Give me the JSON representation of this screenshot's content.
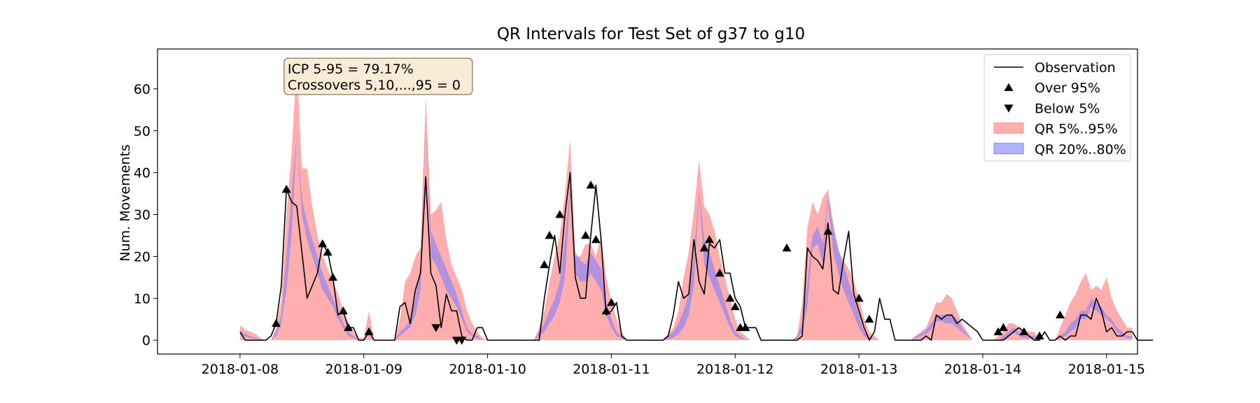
{
  "chart_data": {
    "type": "area",
    "title": "QR Intervals for Test Set of g37 to g10",
    "xlabel": "",
    "ylabel": "Num. Movements",
    "x_start": "2018-01-08 00:00",
    "x_end": "2018-01-15 00:00",
    "xlim": [
      "2018-01-07 08:00",
      "2018-01-15 06:00"
    ],
    "ylim": [
      -3.3,
      69.5
    ],
    "x_ticks": [
      "2018-01-08",
      "2018-01-09",
      "2018-01-10",
      "2018-01-11",
      "2018-01-12",
      "2018-01-13",
      "2018-01-14",
      "2018-01-15"
    ],
    "y_ticks": [
      0,
      10,
      20,
      30,
      40,
      50,
      60
    ],
    "grid": false,
    "legend_position": "top-right",
    "annotation": {
      "lines": [
        "ICP 5-95 = 79.17%",
        "Crossovers 5,10,...,95 = 0"
      ],
      "anchor_date": "2018-01-08 08:00",
      "anchor_y": 67.3
    },
    "hourly": {
      "observation": [
        2,
        0,
        0,
        0,
        0,
        0,
        1,
        4,
        13,
        36,
        33,
        32,
        21,
        10,
        13,
        16,
        23,
        21,
        15,
        6,
        7,
        3,
        3,
        0,
        0,
        2,
        0,
        0,
        0,
        0,
        0,
        8,
        9,
        4,
        12,
        16,
        39,
        16,
        13,
        3,
        11,
        7,
        7,
        1,
        0,
        0,
        3,
        3,
        0,
        0,
        0,
        0,
        0,
        0,
        0,
        0,
        0,
        0,
        0,
        10,
        18,
        25,
        16,
        30,
        40,
        15,
        10,
        10,
        25,
        37,
        24,
        6,
        7,
        9,
        1,
        0,
        0,
        0,
        0,
        0,
        0,
        0,
        0,
        1,
        6,
        14,
        10,
        11,
        24,
        14,
        11,
        23,
        22,
        24,
        16,
        16,
        10,
        8,
        3,
        3,
        3,
        0,
        0,
        0,
        0,
        0,
        0,
        0,
        0,
        1,
        22,
        20,
        19,
        17,
        28,
        12,
        11,
        19,
        26,
        11,
        7,
        3,
        0,
        2,
        10,
        5,
        5,
        0,
        0,
        0,
        0,
        0,
        0,
        1,
        0,
        6,
        5,
        6,
        6,
        4,
        5,
        4,
        3,
        2,
        0,
        0,
        0,
        0,
        0,
        1,
        2,
        3,
        2,
        1,
        0,
        0,
        2,
        0,
        0,
        1,
        0,
        1,
        1,
        6,
        6,
        5,
        10,
        7,
        2,
        3,
        1,
        1,
        2,
        2,
        0,
        0,
        0,
        0
      ],
      "q05": [
        0,
        0,
        0,
        0,
        0,
        0,
        0,
        0,
        0,
        0,
        0,
        0,
        0,
        0,
        0,
        0,
        0,
        0,
        0,
        0,
        0,
        0,
        0,
        0,
        0,
        0,
        0,
        0,
        0,
        0,
        0,
        0,
        0,
        0,
        0,
        0,
        0,
        0,
        0,
        0,
        0,
        0,
        0,
        0,
        0,
        0,
        0,
        0,
        0,
        0,
        0,
        0,
        0,
        0,
        0,
        0,
        0,
        0,
        0,
        0,
        0,
        0,
        0,
        0,
        0,
        0,
        0,
        0,
        0,
        0,
        0,
        0,
        0,
        0,
        0,
        0,
        0,
        0,
        0,
        0,
        0,
        0,
        0,
        0,
        0,
        0,
        0,
        0,
        0,
        0,
        0,
        0,
        0,
        0,
        0,
        0,
        0,
        0,
        0,
        0,
        0,
        0,
        0,
        0,
        0,
        0,
        0,
        0,
        0,
        0,
        0,
        0,
        0,
        0,
        0,
        0,
        0,
        0,
        0,
        0,
        0,
        0,
        0,
        0,
        0,
        0,
        0,
        0,
        0,
        0,
        0,
        0,
        0,
        0,
        0,
        0,
        0,
        0,
        0,
        0,
        0,
        0,
        0,
        0,
        0,
        0,
        0,
        0,
        0,
        0,
        0,
        0,
        0,
        0,
        0,
        0,
        0,
        0,
        0,
        0,
        0,
        0,
        0,
        0,
        0,
        0,
        0,
        0,
        0,
        0,
        0,
        0,
        0,
        0
      ],
      "q20": [
        1.2,
        0.9,
        0.6,
        0.3,
        0,
        0,
        0,
        1,
        4,
        12,
        25,
        49,
        30,
        24,
        20,
        16,
        12,
        10,
        8,
        5,
        3,
        1,
        0.5,
        0,
        0,
        0,
        0,
        0,
        0,
        0,
        0,
        1,
        2,
        3,
        6,
        12,
        53,
        20,
        18,
        15,
        12,
        10,
        8,
        5,
        2,
        1,
        0.5,
        0,
        0,
        0,
        0,
        0,
        0,
        0,
        0,
        0,
        0,
        0,
        1,
        2,
        4,
        6,
        9,
        15,
        35,
        16,
        14,
        14,
        16,
        14,
        12,
        6,
        3,
        1,
        0.4,
        0,
        0,
        0,
        0,
        0,
        0,
        0,
        0,
        0.3,
        0.6,
        1.5,
        3,
        6,
        13,
        35,
        18,
        15,
        12,
        9,
        6,
        3,
        1,
        0.4,
        0,
        0,
        0,
        0,
        0,
        0,
        0,
        0,
        0,
        0,
        0.4,
        2,
        8,
        22,
        23,
        18,
        33,
        21,
        16,
        12,
        9,
        6,
        3,
        1,
        0.4,
        0,
        0,
        0,
        0,
        0,
        0,
        0,
        0,
        0.4,
        0.9,
        1.5,
        2.5,
        4.5,
        4.5,
        4,
        4,
        3,
        2,
        1,
        0,
        0,
        0,
        0,
        0,
        0,
        0,
        1,
        2,
        1,
        0.5,
        0.5,
        0.4,
        0,
        0,
        0,
        0,
        0.5,
        1,
        2,
        3,
        5,
        5,
        8,
        7,
        6,
        5,
        4,
        2,
        1,
        0.5,
        0.5
      ],
      "q80": [
        2,
        1.5,
        1,
        0.5,
        0,
        0,
        0,
        2,
        6,
        20,
        35,
        49,
        34,
        28,
        24,
        20,
        16,
        13,
        10,
        7,
        4,
        2,
        1,
        0,
        0,
        0,
        0,
        0,
        0,
        0,
        0,
        2,
        3,
        5,
        10,
        18,
        53,
        26,
        23,
        20,
        17,
        14,
        11,
        7,
        3,
        1.5,
        1,
        0,
        0,
        0,
        0,
        0,
        0,
        0,
        0,
        0,
        0,
        0,
        2,
        4,
        7,
        10,
        14,
        24,
        37,
        21,
        19,
        18,
        21,
        19,
        17,
        9,
        5,
        2,
        1,
        0,
        0,
        0,
        0,
        0,
        0,
        0,
        0,
        1,
        2,
        4,
        7,
        11,
        20,
        36,
        24,
        21,
        17,
        13,
        9,
        5,
        2,
        1,
        0,
        0,
        0,
        0,
        0,
        0,
        0,
        0,
        0,
        0,
        1,
        4,
        14,
        25,
        27,
        23,
        34,
        27,
        22,
        18,
        14,
        10,
        6,
        2,
        1,
        0,
        0,
        0,
        0,
        0,
        0,
        0,
        0,
        1,
        1.5,
        2.5,
        4,
        6,
        6,
        6,
        6,
        5,
        3,
        1.5,
        0,
        0,
        0,
        0,
        0,
        0,
        1,
        2,
        3,
        2,
        1,
        1,
        1,
        0,
        0,
        0,
        0,
        1,
        2,
        4,
        5,
        7,
        7,
        10,
        9,
        8,
        6,
        5,
        3,
        2,
        1,
        1
      ],
      "q95": [
        3.5,
        2.5,
        2,
        1.5,
        0.5,
        0,
        0,
        3,
        10,
        30,
        45,
        66,
        41,
        41,
        32,
        25,
        20,
        17,
        14,
        11,
        7,
        4,
        2,
        0.5,
        0.5,
        7,
        0,
        0,
        0,
        0,
        0,
        5,
        14,
        16,
        20,
        22,
        58,
        30,
        31,
        33,
        24,
        18,
        15,
        12,
        7,
        4,
        2,
        0.5,
        0,
        0,
        0,
        0,
        0,
        0,
        0,
        0,
        0,
        0,
        3,
        7,
        14,
        20,
        25,
        35,
        48,
        20,
        20,
        23,
        23,
        20,
        25,
        15,
        9,
        5,
        2,
        0,
        0,
        0,
        0,
        0,
        0,
        0,
        0,
        1.5,
        3,
        7,
        15,
        21,
        31,
        43,
        32,
        30,
        26,
        20,
        15,
        10,
        5,
        2,
        1,
        0,
        0,
        0,
        0,
        0,
        0,
        0,
        0,
        0,
        1,
        9,
        27,
        33,
        30,
        34,
        36,
        28,
        21,
        19,
        17,
        14,
        10,
        5,
        2,
        1,
        0,
        0,
        0,
        0,
        0,
        0,
        0,
        1,
        2,
        3,
        6,
        9,
        9,
        11,
        10,
        7,
        4,
        2,
        0,
        0,
        0,
        0,
        0,
        1,
        2,
        4,
        4,
        3,
        2,
        2,
        2,
        0,
        0,
        0,
        0,
        3,
        6,
        9,
        11,
        14,
        16,
        12,
        13,
        12,
        15,
        10,
        7,
        5,
        3,
        3
      ]
    },
    "over_95": [
      {
        "x": "2018-01-08 07:00",
        "y": 4
      },
      {
        "x": "2018-01-08 09:00",
        "y": 36
      },
      {
        "x": "2018-01-08 16:00",
        "y": 23
      },
      {
        "x": "2018-01-08 17:00",
        "y": 21
      },
      {
        "x": "2018-01-08 18:00",
        "y": 15
      },
      {
        "x": "2018-01-08 20:00",
        "y": 7
      },
      {
        "x": "2018-01-08 21:00",
        "y": 3
      },
      {
        "x": "2018-01-09 01:00",
        "y": 2
      },
      {
        "x": "2018-01-10 11:00",
        "y": 18
      },
      {
        "x": "2018-01-10 12:00",
        "y": 25
      },
      {
        "x": "2018-01-10 14:00",
        "y": 30
      },
      {
        "x": "2018-01-10 19:00",
        "y": 25
      },
      {
        "x": "2018-01-10 20:00",
        "y": 37
      },
      {
        "x": "2018-01-10 21:00",
        "y": 24
      },
      {
        "x": "2018-01-10 23:00",
        "y": 7
      },
      {
        "x": "2018-01-11 00:00",
        "y": 9
      },
      {
        "x": "2018-01-11 18:00",
        "y": 22
      },
      {
        "x": "2018-01-11 19:00",
        "y": 24
      },
      {
        "x": "2018-01-11 21:00",
        "y": 16
      },
      {
        "x": "2018-01-11 23:00",
        "y": 10
      },
      {
        "x": "2018-01-12 00:00",
        "y": 8
      },
      {
        "x": "2018-01-12 01:00",
        "y": 3
      },
      {
        "x": "2018-01-12 02:00",
        "y": 3
      },
      {
        "x": "2018-01-12 10:00",
        "y": 22
      },
      {
        "x": "2018-01-12 18:00",
        "y": 26
      },
      {
        "x": "2018-01-13 00:00",
        "y": 10
      },
      {
        "x": "2018-01-13 02:00",
        "y": 5
      },
      {
        "x": "2018-01-14 03:00",
        "y": 2
      },
      {
        "x": "2018-01-14 04:00",
        "y": 3
      },
      {
        "x": "2018-01-14 08:00",
        "y": 2
      },
      {
        "x": "2018-01-14 11:00",
        "y": 1
      },
      {
        "x": "2018-01-14 15:00",
        "y": 6
      }
    ],
    "below_05": [
      {
        "x": "2018-01-09 14:00",
        "y": 3
      },
      {
        "x": "2018-01-09 18:00",
        "y": 0
      },
      {
        "x": "2018-01-09 19:00",
        "y": 0
      }
    ],
    "legend": [
      {
        "label": "Observation",
        "kind": "line"
      },
      {
        "label": "Over 95%",
        "kind": "up-triangle"
      },
      {
        "label": "Below 5%",
        "kind": "down-triangle"
      },
      {
        "label": "QR 5%..95%",
        "kind": "patch-red"
      },
      {
        "label": "QR 20%..80%",
        "kind": "patch-blue"
      }
    ],
    "colors": {
      "observation": "#000000",
      "band_95": "#ff9999",
      "band_80": "#7f7fff",
      "markers": "#000000",
      "annotation_bg": "#f8ecd6",
      "annotation_border": "#7f6f4f"
    }
  }
}
